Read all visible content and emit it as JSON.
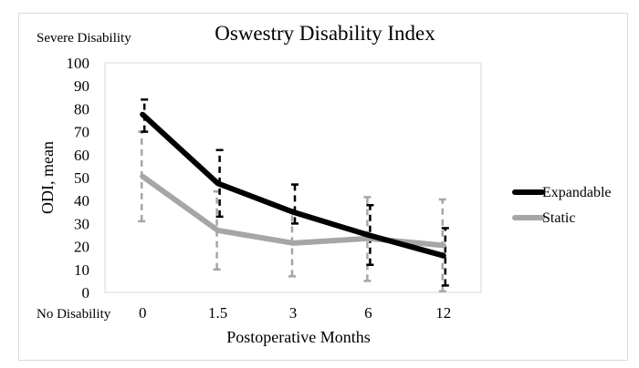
{
  "chart_data": {
    "type": "line",
    "title": "Oswestry Disability Index",
    "xlabel": "Postoperative Months",
    "ylabel": "ODI, mean",
    "top_note": "Severe Disability",
    "bottom_note": "No Disability",
    "categories": [
      "0",
      "1.5",
      "3",
      "6",
      "12"
    ],
    "ylim": [
      0,
      100
    ],
    "yticks": [
      "0",
      "10",
      "20",
      "30",
      "40",
      "50",
      "60",
      "70",
      "80",
      "90",
      "100"
    ],
    "grid": false,
    "legend_position": "right",
    "series": [
      {
        "name": "Expandable",
        "color": "#000000",
        "values": [
          77.5,
          47.5,
          35,
          25,
          16
        ],
        "error_low": [
          70,
          33,
          30,
          12,
          3
        ],
        "error_high": [
          84,
          62,
          47,
          38,
          28
        ]
      },
      {
        "name": "Static",
        "color": "#a6a6a6",
        "values": [
          50.5,
          27,
          21.5,
          23.5,
          20.5
        ],
        "error_low": [
          31,
          10,
          7,
          5,
          0.5
        ],
        "error_high": [
          70,
          44,
          36,
          41.5,
          40.5
        ]
      }
    ]
  }
}
